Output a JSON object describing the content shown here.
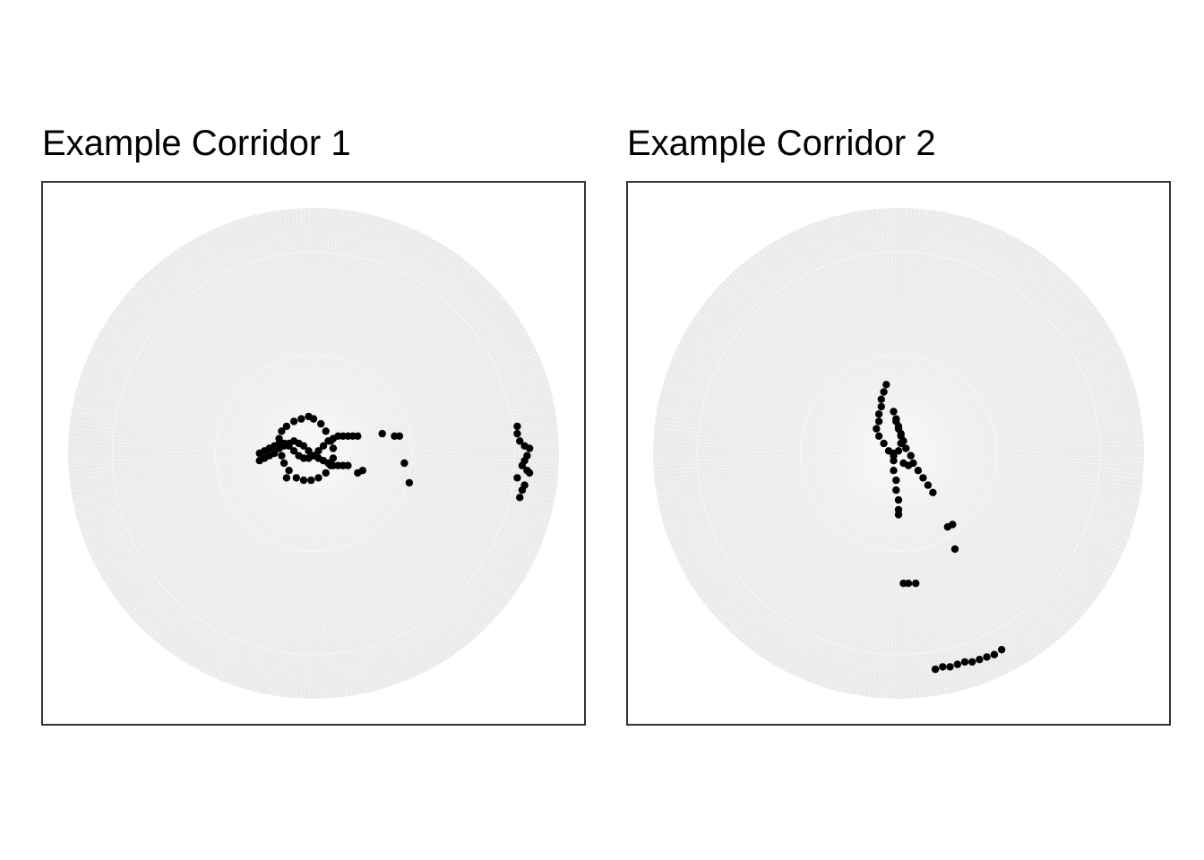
{
  "chart_data": [
    {
      "type": "scatter",
      "coord": "polar",
      "title": "Example Corridor 1",
      "grid": true,
      "axis_labels_shown": false,
      "colors": {
        "background_disc": "#ebebeb",
        "grid": "#f7f7f7",
        "points": "#000000",
        "frame": "#333333"
      },
      "rlim": [
        0,
        1
      ],
      "points": [
        {
          "x": -0.22,
          "y": -0.03
        },
        {
          "x": -0.2,
          "y": -0.02
        },
        {
          "x": -0.18,
          "y": -0.01
        },
        {
          "x": -0.16,
          "y": 0.0
        },
        {
          "x": -0.14,
          "y": 0.02
        },
        {
          "x": -0.12,
          "y": 0.03
        },
        {
          "x": -0.1,
          "y": 0.04
        },
        {
          "x": -0.08,
          "y": 0.05
        },
        {
          "x": -0.06,
          "y": 0.04
        },
        {
          "x": -0.04,
          "y": 0.03
        },
        {
          "x": -0.02,
          "y": 0.01
        },
        {
          "x": 0.0,
          "y": -0.01
        },
        {
          "x": 0.02,
          "y": -0.02
        },
        {
          "x": 0.04,
          "y": -0.03
        },
        {
          "x": 0.06,
          "y": -0.04
        },
        {
          "x": 0.08,
          "y": -0.05
        },
        {
          "x": 0.1,
          "y": -0.05
        },
        {
          "x": 0.12,
          "y": -0.05
        },
        {
          "x": 0.14,
          "y": -0.05
        },
        {
          "x": -0.22,
          "y": 0.0
        },
        {
          "x": -0.2,
          "y": 0.01
        },
        {
          "x": -0.18,
          "y": 0.02
        },
        {
          "x": -0.16,
          "y": 0.03
        },
        {
          "x": -0.14,
          "y": 0.04
        },
        {
          "x": -0.12,
          "y": 0.04
        },
        {
          "x": -0.1,
          "y": 0.03
        },
        {
          "x": -0.08,
          "y": 0.01
        },
        {
          "x": -0.06,
          "y": -0.01
        },
        {
          "x": -0.04,
          "y": -0.02
        },
        {
          "x": -0.02,
          "y": -0.02
        },
        {
          "x": 0.0,
          "y": -0.01
        },
        {
          "x": 0.02,
          "y": 0.01
        },
        {
          "x": 0.04,
          "y": 0.03
        },
        {
          "x": 0.06,
          "y": 0.05
        },
        {
          "x": 0.08,
          "y": 0.06
        },
        {
          "x": 0.1,
          "y": 0.07
        },
        {
          "x": 0.12,
          "y": 0.07
        },
        {
          "x": 0.14,
          "y": 0.07
        },
        {
          "x": 0.16,
          "y": 0.07
        },
        {
          "x": 0.18,
          "y": 0.07
        },
        {
          "x": -0.02,
          "y": 0.15
        },
        {
          "x": -0.05,
          "y": 0.14
        },
        {
          "x": -0.08,
          "y": 0.13
        },
        {
          "x": -0.11,
          "y": 0.11
        },
        {
          "x": -0.13,
          "y": 0.09
        },
        {
          "x": -0.14,
          "y": 0.06
        },
        {
          "x": -0.14,
          "y": 0.03
        },
        {
          "x": -0.13,
          "y": -0.01
        },
        {
          "x": -0.12,
          "y": -0.04
        },
        {
          "x": -0.1,
          "y": -0.07
        },
        {
          "x": -0.07,
          "y": -0.1
        },
        {
          "x": -0.04,
          "y": -0.11
        },
        {
          "x": -0.01,
          "y": -0.11
        },
        {
          "x": 0.02,
          "y": -0.1
        },
        {
          "x": 0.05,
          "y": -0.08
        },
        {
          "x": 0.07,
          "y": -0.05
        },
        {
          "x": 0.08,
          "y": -0.02
        },
        {
          "x": 0.08,
          "y": 0.02
        },
        {
          "x": 0.07,
          "y": 0.05
        },
        {
          "x": 0.05,
          "y": 0.09
        },
        {
          "x": 0.03,
          "y": 0.12
        },
        {
          "x": 0.0,
          "y": 0.14
        },
        {
          "x": -0.11,
          "y": -0.1
        },
        {
          "x": 0.18,
          "y": -0.08
        },
        {
          "x": 0.2,
          "y": -0.07
        },
        {
          "x": 0.28,
          "y": 0.08
        },
        {
          "x": 0.33,
          "y": 0.07
        },
        {
          "x": 0.35,
          "y": 0.07
        },
        {
          "x": 0.37,
          "y": -0.04
        },
        {
          "x": 0.39,
          "y": -0.12
        },
        {
          "x": 0.83,
          "y": 0.11
        },
        {
          "x": 0.83,
          "y": 0.08
        },
        {
          "x": 0.84,
          "y": 0.05
        },
        {
          "x": 0.86,
          "y": 0.03
        },
        {
          "x": 0.88,
          "y": 0.02
        },
        {
          "x": 0.87,
          "y": -0.01
        },
        {
          "x": 0.86,
          "y": -0.03
        },
        {
          "x": 0.85,
          "y": -0.05
        },
        {
          "x": 0.87,
          "y": -0.07
        },
        {
          "x": 0.88,
          "y": -0.08
        },
        {
          "x": 0.83,
          "y": -0.1
        },
        {
          "x": 0.86,
          "y": -0.13
        },
        {
          "x": 0.85,
          "y": -0.15
        },
        {
          "x": 0.84,
          "y": -0.18
        }
      ]
    },
    {
      "type": "scatter",
      "coord": "polar",
      "title": "Example Corridor 2",
      "grid": true,
      "axis_labels_shown": false,
      "colors": {
        "background_disc": "#ebebeb",
        "grid": "#f7f7f7",
        "points": "#000000",
        "frame": "#333333"
      },
      "rlim": [
        0,
        1
      ],
      "points": [
        {
          "x": -0.05,
          "y": 0.28
        },
        {
          "x": -0.06,
          "y": 0.25
        },
        {
          "x": -0.07,
          "y": 0.22
        },
        {
          "x": -0.07,
          "y": 0.19
        },
        {
          "x": -0.08,
          "y": 0.16
        },
        {
          "x": -0.08,
          "y": 0.13
        },
        {
          "x": -0.09,
          "y": 0.1
        },
        {
          "x": -0.08,
          "y": 0.07
        },
        {
          "x": -0.06,
          "y": 0.04
        },
        {
          "x": -0.04,
          "y": 0.01
        },
        {
          "x": -0.02,
          "y": -0.01
        },
        {
          "x": 0.0,
          "y": 0.01
        },
        {
          "x": 0.01,
          "y": 0.04
        },
        {
          "x": 0.01,
          "y": 0.07
        },
        {
          "x": 0.0,
          "y": 0.1
        },
        {
          "x": -0.01,
          "y": 0.13
        },
        {
          "x": -0.02,
          "y": 0.17
        },
        {
          "x": -0.01,
          "y": 0.14
        },
        {
          "x": 0.0,
          "y": 0.11
        },
        {
          "x": 0.01,
          "y": 0.08
        },
        {
          "x": 0.02,
          "y": 0.05
        },
        {
          "x": 0.03,
          "y": 0.02
        },
        {
          "x": 0.05,
          "y": -0.01
        },
        {
          "x": 0.06,
          "y": -0.04
        },
        {
          "x": 0.08,
          "y": -0.07
        },
        {
          "x": 0.1,
          "y": -0.1
        },
        {
          "x": 0.12,
          "y": -0.13
        },
        {
          "x": 0.14,
          "y": -0.16
        },
        {
          "x": -0.02,
          "y": 0.0
        },
        {
          "x": -0.02,
          "y": -0.03
        },
        {
          "x": -0.02,
          "y": -0.07
        },
        {
          "x": -0.01,
          "y": -0.11
        },
        {
          "x": -0.01,
          "y": -0.15
        },
        {
          "x": 0.0,
          "y": -0.19
        },
        {
          "x": 0.0,
          "y": -0.23
        },
        {
          "x": 0.0,
          "y": -0.25
        },
        {
          "x": 0.02,
          "y": -0.04
        },
        {
          "x": 0.04,
          "y": -0.05
        },
        {
          "x": 0.2,
          "y": -0.3
        },
        {
          "x": 0.22,
          "y": -0.29
        },
        {
          "x": 0.23,
          "y": -0.39
        },
        {
          "x": 0.02,
          "y": -0.53
        },
        {
          "x": 0.04,
          "y": -0.53
        },
        {
          "x": 0.07,
          "y": -0.53
        },
        {
          "x": 0.15,
          "y": -0.88
        },
        {
          "x": 0.18,
          "y": -0.87
        },
        {
          "x": 0.21,
          "y": -0.87
        },
        {
          "x": 0.24,
          "y": -0.86
        },
        {
          "x": 0.27,
          "y": -0.85
        },
        {
          "x": 0.3,
          "y": -0.85
        },
        {
          "x": 0.33,
          "y": -0.84
        },
        {
          "x": 0.36,
          "y": -0.83
        },
        {
          "x": 0.39,
          "y": -0.82
        },
        {
          "x": 0.42,
          "y": -0.8
        }
      ]
    }
  ]
}
